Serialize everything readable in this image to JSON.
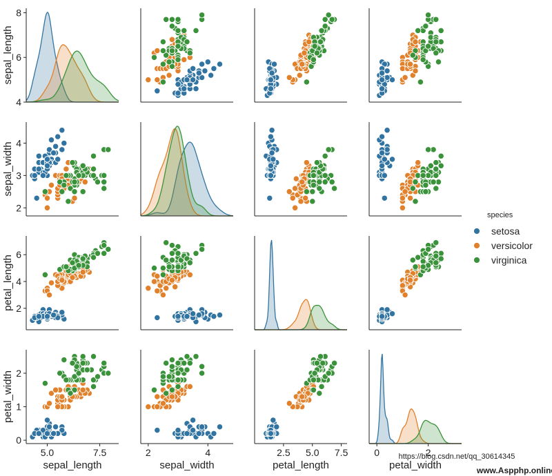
{
  "chart_data": {
    "type": "scatter",
    "variables": [
      "sepal_length",
      "sepal_width",
      "petal_length",
      "petal_width"
    ],
    "axes": {
      "sepal_length": {
        "lim": [
          4.0,
          8.2
        ],
        "ticks": [
          4,
          6,
          8
        ],
        "tick_labels_y": [
          "4",
          "6",
          "8"
        ],
        "xlim": [
          4.0,
          8.4
        ],
        "ticks_x": [
          5.0,
          7.5
        ],
        "tick_labels_x": [
          "5.0",
          "7.5"
        ]
      },
      "sepal_width": {
        "lim": [
          1.75,
          4.65
        ],
        "ticks": [
          2,
          3,
          4
        ],
        "tick_labels_y": [
          "2",
          "3",
          "4"
        ],
        "xlim": [
          1.75,
          4.85
        ],
        "ticks_x": [
          2,
          4
        ],
        "tick_labels_x": [
          "2",
          "4"
        ]
      },
      "petal_length": {
        "lim": [
          0.4,
          7.4
        ],
        "ticks": [
          2,
          4,
          6
        ],
        "tick_labels_y": [
          "2",
          "4",
          "6"
        ],
        "xlim": [
          0.0,
          8.0
        ],
        "ticks_x": [
          2.5,
          5.0,
          7.5
        ],
        "tick_labels_x": [
          "2.5",
          "5.0",
          "7.5"
        ]
      },
      "petal_width": {
        "lim": [
          -0.1,
          2.7
        ],
        "ticks": [
          0,
          1,
          2
        ],
        "tick_labels_y": [
          "0",
          "1",
          "2"
        ],
        "xlim": [
          -0.3,
          3.3
        ],
        "ticks_x": [
          0,
          2
        ],
        "tick_labels_x": [
          "0",
          "2"
        ]
      }
    },
    "legend": {
      "title": "species",
      "placement": "right",
      "entries": [
        {
          "label": "setosa",
          "color": "#3274a1"
        },
        {
          "label": "versicolor",
          "color": "#e1812c"
        },
        {
          "label": "virginica",
          "color": "#3a923a"
        }
      ]
    },
    "diagonal": "kde",
    "series": [
      {
        "name": "setosa",
        "color": "#3274a1",
        "points": [
          [
            5.1,
            3.5,
            1.4,
            0.2
          ],
          [
            4.9,
            3.0,
            1.4,
            0.2
          ],
          [
            4.7,
            3.2,
            1.3,
            0.2
          ],
          [
            4.6,
            3.1,
            1.5,
            0.2
          ],
          [
            5.0,
            3.6,
            1.4,
            0.2
          ],
          [
            5.4,
            3.9,
            1.7,
            0.4
          ],
          [
            4.6,
            3.4,
            1.4,
            0.3
          ],
          [
            5.0,
            3.4,
            1.5,
            0.2
          ],
          [
            4.4,
            2.9,
            1.4,
            0.2
          ],
          [
            4.9,
            3.1,
            1.5,
            0.1
          ],
          [
            5.4,
            3.7,
            1.5,
            0.2
          ],
          [
            4.8,
            3.4,
            1.6,
            0.2
          ],
          [
            4.8,
            3.0,
            1.4,
            0.1
          ],
          [
            4.3,
            3.0,
            1.1,
            0.1
          ],
          [
            5.8,
            4.0,
            1.2,
            0.2
          ],
          [
            5.7,
            4.4,
            1.5,
            0.4
          ],
          [
            5.4,
            3.9,
            1.3,
            0.4
          ],
          [
            5.1,
            3.5,
            1.4,
            0.3
          ],
          [
            5.7,
            3.8,
            1.7,
            0.3
          ],
          [
            5.1,
            3.8,
            1.5,
            0.3
          ],
          [
            5.4,
            3.4,
            1.7,
            0.2
          ],
          [
            5.1,
            3.7,
            1.5,
            0.4
          ],
          [
            4.6,
            3.6,
            1.0,
            0.2
          ],
          [
            5.1,
            3.3,
            1.7,
            0.5
          ],
          [
            4.8,
            3.4,
            1.9,
            0.2
          ],
          [
            5.0,
            3.0,
            1.6,
            0.2
          ],
          [
            5.0,
            3.4,
            1.6,
            0.4
          ],
          [
            5.2,
            3.5,
            1.5,
            0.2
          ],
          [
            5.2,
            3.4,
            1.4,
            0.2
          ],
          [
            4.7,
            3.2,
            1.6,
            0.2
          ],
          [
            4.8,
            3.1,
            1.6,
            0.2
          ],
          [
            5.4,
            3.4,
            1.5,
            0.4
          ],
          [
            5.2,
            4.1,
            1.5,
            0.1
          ],
          [
            5.5,
            4.2,
            1.4,
            0.2
          ],
          [
            4.9,
            3.1,
            1.5,
            0.2
          ],
          [
            5.0,
            3.2,
            1.2,
            0.2
          ],
          [
            5.5,
            3.5,
            1.3,
            0.2
          ],
          [
            4.9,
            3.6,
            1.4,
            0.1
          ],
          [
            4.4,
            3.0,
            1.3,
            0.2
          ],
          [
            5.1,
            3.4,
            1.5,
            0.2
          ],
          [
            5.0,
            3.5,
            1.3,
            0.3
          ],
          [
            4.5,
            2.3,
            1.3,
            0.3
          ],
          [
            4.4,
            3.2,
            1.3,
            0.2
          ],
          [
            5.0,
            3.5,
            1.6,
            0.6
          ],
          [
            5.1,
            3.8,
            1.9,
            0.4
          ],
          [
            4.8,
            3.0,
            1.4,
            0.3
          ],
          [
            5.1,
            3.8,
            1.6,
            0.2
          ],
          [
            4.6,
            3.2,
            1.4,
            0.2
          ],
          [
            5.3,
            3.7,
            1.5,
            0.2
          ],
          [
            5.0,
            3.3,
            1.4,
            0.2
          ]
        ]
      },
      {
        "name": "versicolor",
        "color": "#e1812c",
        "points": [
          [
            7.0,
            3.2,
            4.7,
            1.4
          ],
          [
            6.4,
            3.2,
            4.5,
            1.5
          ],
          [
            6.9,
            3.1,
            4.9,
            1.5
          ],
          [
            5.5,
            2.3,
            4.0,
            1.3
          ],
          [
            6.5,
            2.8,
            4.6,
            1.5
          ],
          [
            5.7,
            2.8,
            4.5,
            1.3
          ],
          [
            6.3,
            3.3,
            4.7,
            1.6
          ],
          [
            4.9,
            2.4,
            3.3,
            1.0
          ],
          [
            6.6,
            2.9,
            4.6,
            1.3
          ],
          [
            5.2,
            2.7,
            3.9,
            1.4
          ],
          [
            5.0,
            2.0,
            3.5,
            1.0
          ],
          [
            5.9,
            3.0,
            4.2,
            1.5
          ],
          [
            6.0,
            2.2,
            4.0,
            1.0
          ],
          [
            6.1,
            2.9,
            4.7,
            1.4
          ],
          [
            5.6,
            2.9,
            3.6,
            1.3
          ],
          [
            6.7,
            3.1,
            4.4,
            1.4
          ],
          [
            5.6,
            3.0,
            4.5,
            1.5
          ],
          [
            5.8,
            2.7,
            4.1,
            1.0
          ],
          [
            6.2,
            2.2,
            4.5,
            1.5
          ],
          [
            5.6,
            2.5,
            3.9,
            1.1
          ],
          [
            5.9,
            3.2,
            4.8,
            1.8
          ],
          [
            6.1,
            2.8,
            4.0,
            1.3
          ],
          [
            6.3,
            2.5,
            4.9,
            1.5
          ],
          [
            6.1,
            2.8,
            4.7,
            1.2
          ],
          [
            6.4,
            2.9,
            4.3,
            1.3
          ],
          [
            6.6,
            3.0,
            4.4,
            1.4
          ],
          [
            6.8,
            2.8,
            4.8,
            1.4
          ],
          [
            6.7,
            3.0,
            5.0,
            1.7
          ],
          [
            6.0,
            2.9,
            4.5,
            1.5
          ],
          [
            5.7,
            2.6,
            3.5,
            1.0
          ],
          [
            5.5,
            2.4,
            3.8,
            1.1
          ],
          [
            5.5,
            2.4,
            3.7,
            1.0
          ],
          [
            5.8,
            2.7,
            3.9,
            1.2
          ],
          [
            6.0,
            2.7,
            5.1,
            1.6
          ],
          [
            5.4,
            3.0,
            4.5,
            1.5
          ],
          [
            6.0,
            3.4,
            4.5,
            1.6
          ],
          [
            6.7,
            3.1,
            4.7,
            1.5
          ],
          [
            6.3,
            2.3,
            4.4,
            1.3
          ],
          [
            5.6,
            3.0,
            4.1,
            1.3
          ],
          [
            5.5,
            2.5,
            4.0,
            1.3
          ],
          [
            5.5,
            2.6,
            4.4,
            1.2
          ],
          [
            6.1,
            3.0,
            4.6,
            1.4
          ],
          [
            5.8,
            2.6,
            4.0,
            1.2
          ],
          [
            5.0,
            2.3,
            3.3,
            1.0
          ],
          [
            5.6,
            2.7,
            4.2,
            1.3
          ],
          [
            5.7,
            3.0,
            4.2,
            1.2
          ],
          [
            5.7,
            2.9,
            4.2,
            1.3
          ],
          [
            6.2,
            2.9,
            4.3,
            1.3
          ],
          [
            5.1,
            2.5,
            3.0,
            1.1
          ],
          [
            5.7,
            2.8,
            4.1,
            1.3
          ]
        ]
      },
      {
        "name": "virginica",
        "color": "#3a923a",
        "points": [
          [
            6.3,
            3.3,
            6.0,
            2.5
          ],
          [
            5.8,
            2.7,
            5.1,
            1.9
          ],
          [
            7.1,
            3.0,
            5.9,
            2.1
          ],
          [
            6.3,
            2.9,
            5.6,
            1.8
          ],
          [
            6.5,
            3.0,
            5.8,
            2.2
          ],
          [
            7.6,
            3.0,
            6.6,
            2.1
          ],
          [
            4.9,
            2.5,
            4.5,
            1.7
          ],
          [
            7.3,
            2.9,
            6.3,
            1.8
          ],
          [
            6.7,
            2.5,
            5.8,
            1.8
          ],
          [
            7.2,
            3.6,
            6.1,
            2.5
          ],
          [
            6.5,
            3.2,
            5.1,
            2.0
          ],
          [
            6.4,
            2.7,
            5.3,
            1.9
          ],
          [
            6.8,
            3.0,
            5.5,
            2.1
          ],
          [
            5.7,
            2.5,
            5.0,
            2.0
          ],
          [
            5.8,
            2.8,
            5.1,
            2.4
          ],
          [
            6.4,
            3.2,
            5.3,
            2.3
          ],
          [
            6.5,
            3.0,
            5.5,
            1.8
          ],
          [
            7.7,
            3.8,
            6.7,
            2.2
          ],
          [
            7.7,
            2.6,
            6.9,
            2.3
          ],
          [
            6.0,
            2.2,
            5.0,
            1.5
          ],
          [
            6.9,
            3.2,
            5.7,
            2.3
          ],
          [
            5.6,
            2.8,
            4.9,
            2.0
          ],
          [
            7.7,
            2.8,
            6.7,
            2.0
          ],
          [
            6.3,
            2.7,
            4.9,
            1.8
          ],
          [
            6.7,
            3.3,
            5.7,
            2.1
          ],
          [
            7.2,
            3.2,
            6.0,
            1.8
          ],
          [
            6.2,
            2.8,
            4.8,
            1.8
          ],
          [
            6.1,
            3.0,
            4.9,
            1.8
          ],
          [
            6.4,
            2.8,
            5.6,
            2.1
          ],
          [
            7.2,
            3.0,
            5.8,
            1.6
          ],
          [
            7.4,
            2.8,
            6.1,
            1.9
          ],
          [
            7.9,
            3.8,
            6.4,
            2.0
          ],
          [
            6.4,
            2.8,
            5.6,
            2.2
          ],
          [
            6.3,
            2.8,
            5.1,
            1.5
          ],
          [
            6.1,
            2.6,
            5.6,
            1.4
          ],
          [
            7.7,
            3.0,
            6.1,
            2.3
          ],
          [
            6.3,
            3.4,
            5.6,
            2.4
          ],
          [
            6.4,
            3.1,
            5.5,
            1.8
          ],
          [
            6.0,
            3.0,
            4.8,
            1.8
          ],
          [
            6.9,
            3.1,
            5.4,
            2.1
          ],
          [
            6.7,
            3.1,
            5.6,
            2.4
          ],
          [
            6.9,
            3.1,
            5.1,
            2.3
          ],
          [
            5.8,
            2.7,
            5.1,
            1.9
          ],
          [
            6.8,
            3.2,
            5.9,
            2.3
          ],
          [
            6.7,
            3.3,
            5.7,
            2.5
          ],
          [
            6.7,
            3.0,
            5.2,
            2.3
          ],
          [
            6.3,
            2.5,
            5.0,
            1.9
          ],
          [
            6.5,
            3.0,
            5.2,
            2.0
          ],
          [
            6.2,
            3.4,
            5.4,
            2.3
          ],
          [
            5.9,
            3.0,
            5.1,
            1.8
          ]
        ]
      }
    ]
  },
  "watermark": {
    "text": "https://blog.csdn.net/qq_30614345",
    "site": "www.Aspphp.online"
  }
}
